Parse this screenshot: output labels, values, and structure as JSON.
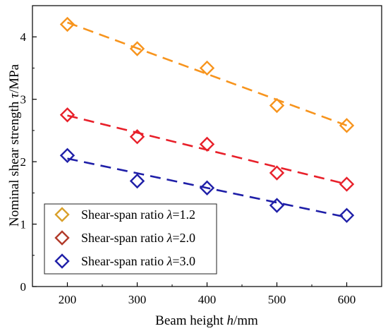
{
  "chart_data": {
    "type": "scatter",
    "title": "",
    "xlabel": "Beam height h/mm",
    "xlabel_parts": {
      "pre": "Beam height ",
      "var": "h",
      "post": "/mm"
    },
    "ylabel": "Nominal shear strength τ/MPa",
    "ylabel_parts": {
      "pre": "Nominal shear strength ",
      "var": "τ",
      "post": "/MPa"
    },
    "xlim": [
      150,
      650
    ],
    "ylim": [
      0,
      4.5
    ],
    "xticks": [
      200,
      300,
      400,
      500,
      600
    ],
    "yticks": [
      0,
      1,
      2,
      3,
      4
    ],
    "grid": false,
    "legend_position": "bottom-left",
    "marker": "diamond-open",
    "trendline": "dashed",
    "series": [
      {
        "name": "Shear-span ratio λ=1.2",
        "name_parts": {
          "pre": "Shear-span ratio ",
          "var": "λ",
          "post": "=1.2"
        },
        "color": "#F7941D",
        "legend_color": "#D9A02B",
        "x": [
          200,
          300,
          400,
          500,
          600
        ],
        "y": [
          4.2,
          3.81,
          3.5,
          2.9,
          2.58
        ],
        "fit": [
          4.23,
          2.58
        ]
      },
      {
        "name": "Shear-span ratio λ=2.0",
        "name_parts": {
          "pre": "Shear-span ratio ",
          "var": "λ",
          "post": "=2.0"
        },
        "color": "#E8202A",
        "legend_color": "#B23A2A",
        "x": [
          200,
          300,
          400,
          500,
          600
        ],
        "y": [
          2.75,
          2.4,
          2.28,
          1.82,
          1.64
        ],
        "fit": [
          2.74,
          1.64
        ]
      },
      {
        "name": "Shear-span ratio λ=3.0",
        "name_parts": {
          "pre": "Shear-span ratio ",
          "var": "λ",
          "post": "=3.0"
        },
        "color": "#1F1FA8",
        "legend_color": "#1F1FA8",
        "x": [
          200,
          300,
          400,
          500,
          600
        ],
        "y": [
          2.1,
          1.69,
          1.58,
          1.3,
          1.14
        ],
        "fit": [
          2.05,
          1.11
        ]
      }
    ]
  }
}
